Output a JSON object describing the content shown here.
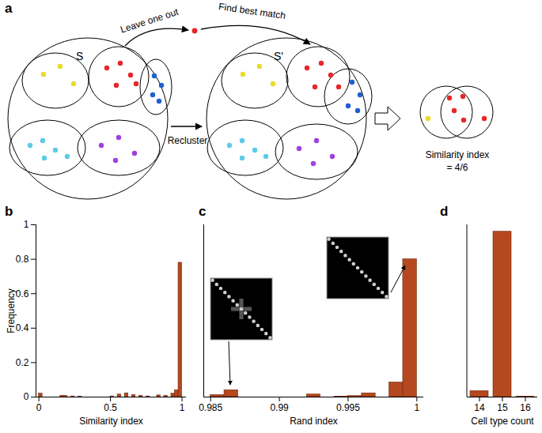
{
  "diagram": {
    "panel": "a",
    "sets": [
      "S",
      "S'"
    ],
    "arrows": {
      "leave": "Leave one out",
      "match": "Find best match",
      "recluster": "Recluster"
    },
    "result": [
      "Similarity index",
      "= 4/6"
    ]
  },
  "chart_data": [
    {
      "title": "b",
      "type": "histogram",
      "color": "#b5481f",
      "bins": [
        0,
        0.025,
        0.05,
        0.075,
        0.1,
        0.125,
        0.15,
        0.175,
        0.2,
        0.225,
        0.25,
        0.275,
        0.3,
        0.325,
        0.35,
        0.375,
        0.4,
        0.425,
        0.45,
        0.475,
        0.5,
        0.525,
        0.55,
        0.575,
        0.6,
        0.625,
        0.65,
        0.675,
        0.7,
        0.725,
        0.75,
        0.775,
        0.8,
        0.825,
        0.85,
        0.875,
        0.9,
        0.925,
        0.95,
        0.975,
        1
      ],
      "values": [
        0.02,
        0,
        0,
        0,
        0,
        0,
        0.008,
        0.006,
        0,
        0.004,
        0,
        0.003,
        0,
        0,
        0,
        0,
        0,
        0,
        0,
        0,
        0.004,
        0,
        0.015,
        0,
        0.022,
        0,
        0.012,
        0,
        0.008,
        0,
        0.004,
        0,
        0,
        0.01,
        0,
        0.008,
        0,
        0.02,
        0.04,
        0.78
      ],
      "xlim": [
        -0.02,
        1.03
      ],
      "xticks": [
        0,
        0.5,
        1
      ],
      "ylim": [
        0,
        1
      ],
      "yticks": [
        0,
        0.2,
        0.4,
        0.6,
        0.8,
        1
      ],
      "x_label": "Similarity index",
      "y_label": "Frequency"
    },
    {
      "title": "c",
      "type": "histogram",
      "color": "#b5481f",
      "bins": [
        0.985,
        0.986,
        0.987,
        0.988,
        0.989,
        0.99,
        0.991,
        0.992,
        0.993,
        0.994,
        0.995,
        0.996,
        0.997,
        0.998,
        0.999,
        1
      ],
      "values": [
        0.012,
        0.04,
        0,
        0,
        0,
        0,
        0,
        0.015,
        0,
        0.003,
        0.006,
        0.022,
        0,
        0.085,
        0.8
      ],
      "xlim": [
        0.9845,
        1.0005
      ],
      "xticks": [
        0.985,
        0.99,
        0.995,
        1
      ],
      "ylim": [
        0,
        1
      ],
      "tick_labels": "x",
      "x_label": "Rand index"
    },
    {
      "title": "d",
      "type": "bar",
      "color": "#b5481f",
      "categories": [
        "14",
        "15",
        "16"
      ],
      "values": [
        0.035,
        0.96,
        0.003
      ],
      "ylim": [
        0,
        1
      ],
      "tick_labels": "x",
      "x_label": "Cell type count"
    }
  ]
}
